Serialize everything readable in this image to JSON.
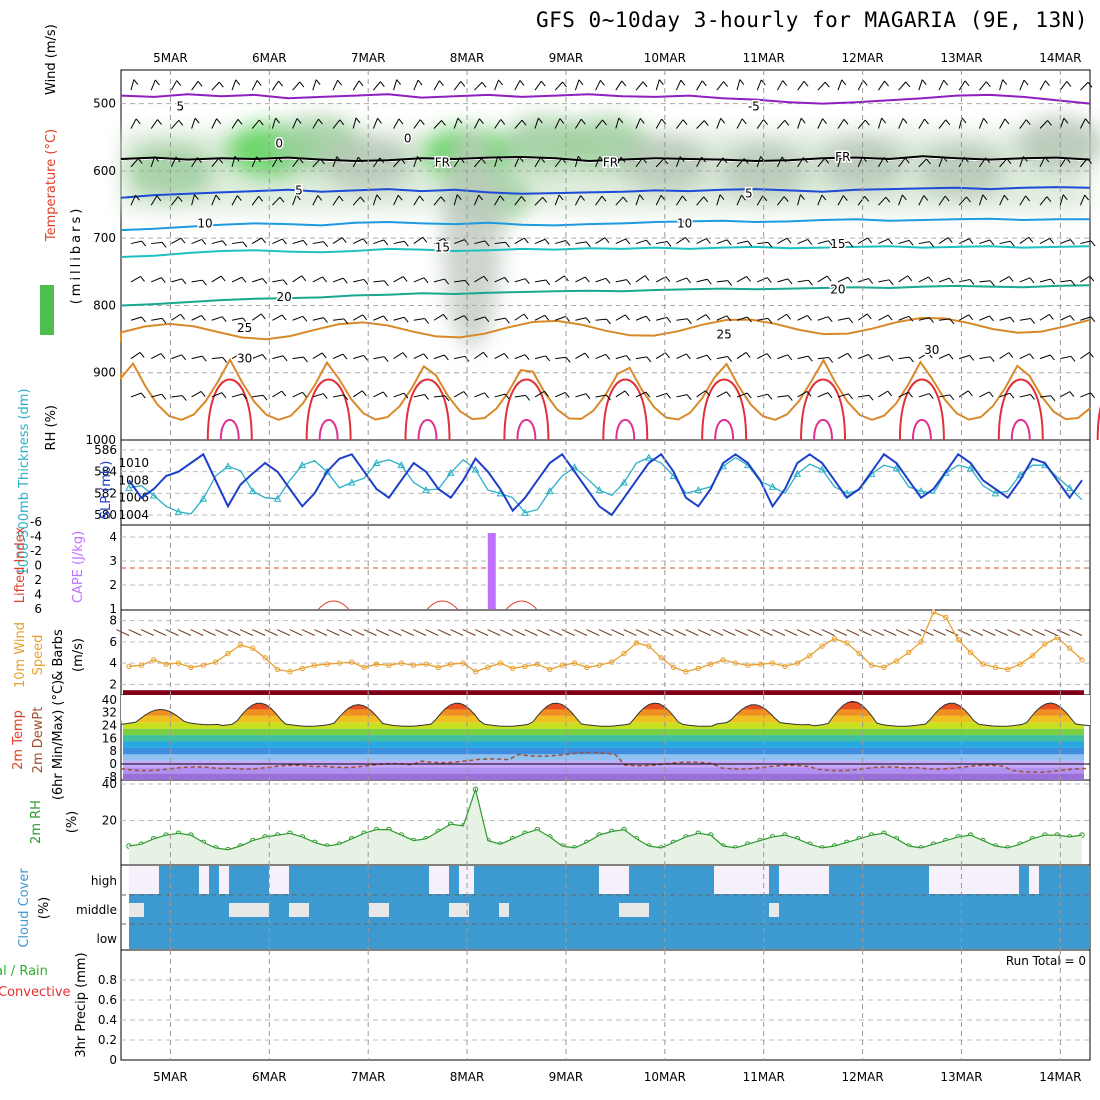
{
  "title": "GFS 0~10day 3-hourly for MAGARIA (9E, 13N)",
  "colors": {
    "rh": "#3cb043",
    "temp": "#e0402a",
    "wind": "#000000",
    "thick": "#2ab0c8",
    "slp": "#1e3fc8",
    "lifted": "#e0402a",
    "cape": "#c070ff",
    "wind10": "#e8a030",
    "precip_total": "#30b030",
    "precip_conv": "#e03030",
    "cloud": "#3c9ad0",
    "rh2m": "#2e9a2e"
  },
  "chart_data": [
    {
      "id": "upper-air",
      "type": "heatmap",
      "title": "GFS 0~10day 3-hourly for MAGARIA (9E, 13N)",
      "x_ticks": [
        "5MAR",
        "6MAR",
        "7MAR",
        "8MAR",
        "9MAR",
        "10MAR",
        "11MAR",
        "12MAR",
        "13MAR",
        "14MAR"
      ],
      "ylabel_rh": "RH (%)",
      "ylabel_temp": "Temperature (°C)",
      "ylabel_wind": "Wind (m/s)",
      "ylabel_units": "(millibars)",
      "y_ticks": [
        500,
        600,
        700,
        800,
        900,
        1000
      ],
      "ylim": [
        1000,
        450
      ],
      "contour_labels": [
        {
          "text": "5",
          "day": 5.1,
          "p": 503
        },
        {
          "text": "-5",
          "day": 10.9,
          "p": 503
        },
        {
          "text": "0",
          "day": 6.1,
          "p": 558
        },
        {
          "text": "0",
          "day": 7.4,
          "p": 550
        },
        {
          "text": "FR",
          "day": 7.75,
          "p": 586
        },
        {
          "text": "FR",
          "day": 9.45,
          "p": 586
        },
        {
          "text": "FR",
          "day": 11.8,
          "p": 578
        },
        {
          "text": "5",
          "day": 6.3,
          "p": 628
        },
        {
          "text": "5",
          "day": 10.85,
          "p": 632
        },
        {
          "text": "10",
          "day": 5.35,
          "p": 677
        },
        {
          "text": "10",
          "day": 10.2,
          "p": 677
        },
        {
          "text": "15",
          "day": 7.75,
          "p": 712
        },
        {
          "text": "15",
          "day": 11.75,
          "p": 707
        },
        {
          "text": "20",
          "day": 6.15,
          "p": 786
        },
        {
          "text": "20",
          "day": 11.75,
          "p": 775
        },
        {
          "text": "25",
          "day": 5.75,
          "p": 832
        },
        {
          "text": "25",
          "day": 10.6,
          "p": 842
        },
        {
          "text": "30",
          "day": 5.75,
          "p": 877
        },
        {
          "text": "30",
          "day": 12.7,
          "p": 865
        }
      ],
      "isotherms": [
        {
          "label": "-5",
          "values": [
            488,
            490,
            486,
            489,
            487,
            492,
            490,
            488,
            486,
            491,
            489,
            487,
            490,
            488,
            486,
            489,
            490,
            488,
            492,
            494,
            498,
            500,
            498,
            495,
            492,
            488,
            487,
            490,
            495,
            500
          ]
        },
        {
          "label": "0",
          "values": [
            583,
            581,
            584,
            582,
            583,
            581,
            584,
            586,
            585,
            582,
            583,
            581,
            580,
            582,
            586,
            584,
            582,
            583,
            584,
            586,
            585,
            582,
            581,
            583,
            579,
            582,
            584,
            582,
            581,
            584
          ]
        },
        {
          "label": "5",
          "values": [
            640,
            636,
            634,
            632,
            630,
            628,
            631,
            629,
            627,
            630,
            628,
            632,
            634,
            633,
            632,
            631,
            629,
            630,
            628,
            627,
            629,
            631,
            628,
            627,
            626,
            625,
            627,
            625,
            624,
            625
          ]
        },
        {
          "label": "10",
          "values": [
            688,
            686,
            683,
            680,
            678,
            679,
            681,
            677,
            676,
            678,
            679,
            677,
            680,
            681,
            679,
            678,
            676,
            675,
            674,
            676,
            675,
            673,
            672,
            674,
            673,
            672,
            671,
            673,
            672,
            672
          ]
        },
        {
          "label": "15",
          "values": [
            728,
            726,
            722,
            719,
            718,
            720,
            721,
            719,
            716,
            717,
            719,
            718,
            716,
            717,
            715,
            716,
            714,
            716,
            714,
            713,
            715,
            714,
            713,
            712,
            714,
            713,
            712,
            714,
            713,
            712
          ]
        },
        {
          "label": "20",
          "values": [
            800,
            798,
            795,
            792,
            790,
            789,
            788,
            785,
            784,
            782,
            783,
            781,
            780,
            779,
            778,
            779,
            777,
            776,
            775,
            776,
            775,
            774,
            773,
            774,
            772,
            771,
            772,
            773,
            771,
            770
          ]
        }
      ],
      "rh_blobs": [
        {
          "day": 5.0,
          "p": 600,
          "rh": 70
        },
        {
          "day": 6.0,
          "p": 570,
          "rh": 80
        },
        {
          "day": 6.5,
          "p": 560,
          "rh": 75
        },
        {
          "day": 7.0,
          "p": 590,
          "rh": 60
        },
        {
          "day": 8.0,
          "p": 575,
          "rh": 90
        },
        {
          "day": 8.2,
          "p": 640,
          "rh": 70
        },
        {
          "day": 8.8,
          "p": 560,
          "rh": 75
        },
        {
          "day": 9.4,
          "p": 560,
          "rh": 70
        },
        {
          "day": 10.0,
          "p": 590,
          "rh": 50
        },
        {
          "day": 11.0,
          "p": 600,
          "rh": 45
        },
        {
          "day": 12.0,
          "p": 590,
          "rh": 40
        },
        {
          "day": 13.0,
          "p": 600,
          "rh": 45
        },
        {
          "day": 14.0,
          "p": 560,
          "rh": 50
        }
      ]
    },
    {
      "id": "thickness-slp",
      "type": "line",
      "ylabel_left": "1000-500mb Thickness (dm)",
      "ylabel_right": "SLP (mb)",
      "left_ticks": [
        580,
        582,
        584,
        586
      ],
      "right_ticks": [
        1004,
        1006,
        1008,
        1010
      ],
      "series": [
        {
          "name": "1000-500mb Thickness",
          "axis": "left",
          "values": [
            582.5,
            582.7,
            581.8,
            580.8,
            580.3,
            580.1,
            581.5,
            583.6,
            584.5,
            584.1,
            582.2,
            581.6,
            581.5,
            583.2,
            584.6,
            585.0,
            584.0,
            582.5,
            583.0,
            583.4,
            584.8,
            585.1,
            584.6,
            583.0,
            582.3,
            582.4,
            583.9,
            585.1,
            584.2,
            582.3,
            582.0,
            581.6,
            580.2,
            580.5,
            582.2,
            583.6,
            584.4,
            583.4,
            582.3,
            581.8,
            583.0,
            584.8,
            585.3,
            584.8,
            583.6,
            582.0,
            582.3,
            582.6,
            584.5,
            585.3,
            584.6,
            583.1,
            582.6,
            582.0,
            583.8,
            584.7,
            584.2,
            582.6,
            582.0,
            582.3,
            583.8,
            584.6,
            584.3,
            582.6,
            582.2,
            582.0,
            583.9,
            584.6,
            584.3,
            582.7,
            582.0,
            582.2,
            583.7,
            584.6,
            584.6,
            583.5,
            582.5,
            581.4
          ]
        },
        {
          "name": "SLP",
          "axis": "right",
          "values": [
            1008,
            1006,
            1007,
            1008.5,
            1009,
            1010,
            1011,
            1008,
            1005,
            1007.5,
            1008.8,
            1010,
            1009,
            1007,
            1005,
            1006.5,
            1009,
            1010.5,
            1011,
            1009,
            1007,
            1006,
            1008,
            1010,
            1009,
            1007,
            1006,
            1008,
            1010.5,
            1009,
            1007,
            1004.5,
            1006,
            1008,
            1010,
            1011,
            1009,
            1007,
            1005,
            1004,
            1006,
            1008,
            1010,
            1011,
            1009,
            1006,
            1005,
            1007,
            1010,
            1011,
            1010,
            1008,
            1005,
            1007,
            1010,
            1011,
            1010,
            1008,
            1006,
            1007,
            1009,
            1011,
            1010,
            1008,
            1006,
            1007,
            1009,
            1011,
            1010,
            1008,
            1007,
            1006,
            1008,
            1010.5,
            1010,
            1008,
            1006,
            1008
          ]
        }
      ]
    },
    {
      "id": "stability",
      "type": "bar",
      "ylabel_left": "Lifted Index",
      "ylabel_right": "CAPE (J/kg)",
      "left_ticks": [
        "6",
        "4",
        "2",
        "0",
        "-2",
        "-4",
        "-6"
      ],
      "right_ticks": [
        "1",
        "2",
        "3",
        "4"
      ],
      "cape_bar": {
        "day": 8.25,
        "value": 4
      }
    },
    {
      "id": "wind10m",
      "type": "line",
      "ylabel": "10m Wind Speed & Barbs (m/s)",
      "y_ticks": [
        2,
        4,
        6,
        8
      ],
      "ylim": [
        1,
        9
      ],
      "series": [
        {
          "name": "10m Wind",
          "values": [
            3.7,
            3.8,
            4.3,
            3.9,
            4.0,
            3.6,
            3.8,
            4.1,
            4.9,
            5.7,
            5.4,
            4.5,
            3.4,
            3.2,
            3.5,
            3.8,
            3.9,
            4.0,
            4.1,
            3.6,
            3.9,
            3.8,
            4.0,
            3.8,
            3.9,
            3.6,
            3.9,
            4.0,
            3.2,
            3.6,
            4.0,
            3.5,
            3.7,
            3.9,
            3.4,
            3.8,
            4.0,
            3.6,
            3.8,
            4.1,
            4.9,
            5.9,
            5.6,
            4.5,
            3.6,
            3.2,
            3.5,
            3.9,
            4.3,
            4.0,
            3.8,
            3.9,
            4.0,
            3.7,
            4.0,
            4.7,
            5.6,
            6.3,
            5.9,
            4.9,
            3.8,
            3.6,
            4.2,
            5.0,
            6.0,
            8.8,
            8.3,
            6.2,
            5.0,
            3.9,
            3.6,
            3.4,
            3.9,
            4.7,
            5.8,
            6.4,
            5.4,
            4.3
          ]
        }
      ]
    },
    {
      "id": "temp2m",
      "type": "area",
      "ylabel": "2m Temp 2m DewPt (6hr Min/Max) (°C)",
      "y_ticks": [
        -8,
        0,
        8,
        16,
        24,
        32,
        40
      ],
      "ylim": [
        -10,
        43
      ],
      "temp_max": [
        34,
        38,
        37,
        38,
        38,
        38,
        37,
        39,
        38,
        38
      ],
      "temp_min": [
        26,
        25,
        25,
        25,
        25,
        25,
        26,
        25,
        25,
        25
      ],
      "dewpt": [
        -3,
        -2,
        -1,
        2,
        6,
        0,
        -2,
        -3,
        -2,
        -4
      ]
    },
    {
      "id": "rh2m",
      "type": "area",
      "ylabel": "2m RH (%)",
      "y_ticks": [
        20,
        40
      ],
      "ylim": [
        0,
        40
      ],
      "series": [
        {
          "name": "2m RH",
          "values": [
            6,
            7,
            10,
            12,
            13,
            12,
            8,
            5,
            4,
            6,
            9,
            11,
            12,
            13,
            11,
            8,
            6,
            7,
            10,
            13,
            15,
            15,
            12,
            9,
            10,
            14,
            18,
            17,
            37,
            9,
            7,
            10,
            13,
            15,
            11,
            6,
            5,
            8,
            12,
            14,
            15,
            10,
            6,
            5,
            8,
            11,
            13,
            12,
            6,
            5,
            7,
            9,
            11,
            12,
            10,
            7,
            5,
            6,
            8,
            10,
            12,
            13,
            10,
            6,
            5,
            7,
            9,
            11,
            12,
            9,
            6,
            5,
            7,
            10,
            12,
            12,
            11,
            12
          ]
        }
      ]
    },
    {
      "id": "cloud",
      "type": "heatmap",
      "ylabel": "Cloud Cover (%)",
      "levels": [
        "high",
        "middle",
        "low"
      ]
    },
    {
      "id": "precip",
      "type": "bar",
      "ylabel": "3hr Precip (mm)",
      "ylabel_left": "Total / Rain Convective",
      "y_ticks": [
        0,
        0.2,
        0.4,
        0.6,
        0.8
      ],
      "ylim": [
        0,
        1
      ],
      "run_total": "Run Total = 0",
      "values": []
    }
  ]
}
